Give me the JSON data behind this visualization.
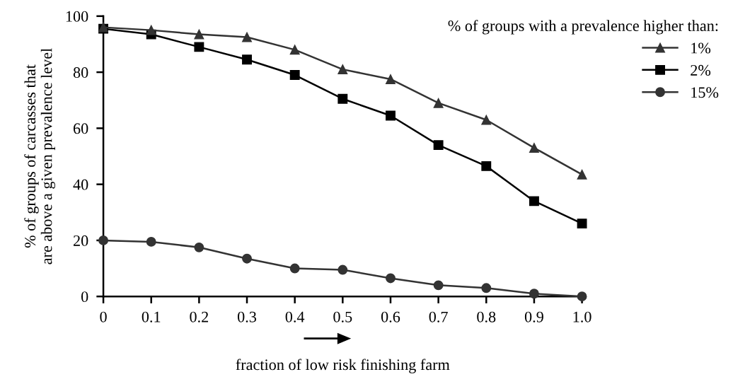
{
  "chart_data": {
    "type": "line",
    "xlabel": "fraction of low risk finishing farm",
    "ylabel": "% of groups of carcasses that\nare above a given prevalence level",
    "legend_title": "% of groups with a prevalence higher than:",
    "x": [
      0,
      0.1,
      0.2,
      0.3,
      0.4,
      0.5,
      0.6,
      0.7,
      0.8,
      0.9,
      1.0
    ],
    "series": [
      {
        "name": "1%",
        "color": "#333333",
        "marker": "triangle",
        "values": [
          96,
          95,
          93.5,
          92.5,
          88,
          81,
          77.5,
          69,
          63,
          53,
          43.5
        ]
      },
      {
        "name": "2%",
        "color": "#000000",
        "marker": "square",
        "values": [
          95.5,
          93.5,
          89,
          84.5,
          79,
          70.5,
          64.5,
          54,
          46.5,
          34,
          26
        ]
      },
      {
        "name": "15%",
        "color": "#333333",
        "marker": "circle",
        "values": [
          20,
          19.5,
          17.5,
          13.5,
          10,
          9.5,
          6.5,
          4,
          3,
          1,
          0
        ]
      }
    ],
    "xlim": [
      0,
      1.0
    ],
    "xticks": [
      0,
      0.1,
      0.2,
      0.3,
      0.4,
      0.5,
      0.6,
      0.7,
      0.8,
      0.9,
      {
        "value": 1.0,
        "label": "1.0"
      }
    ],
    "ylim": [
      0,
      100
    ],
    "yticks": [
      0,
      20,
      40,
      60,
      80,
      100
    ],
    "grid": false,
    "legend": "top right",
    "line_style": "solid"
  }
}
